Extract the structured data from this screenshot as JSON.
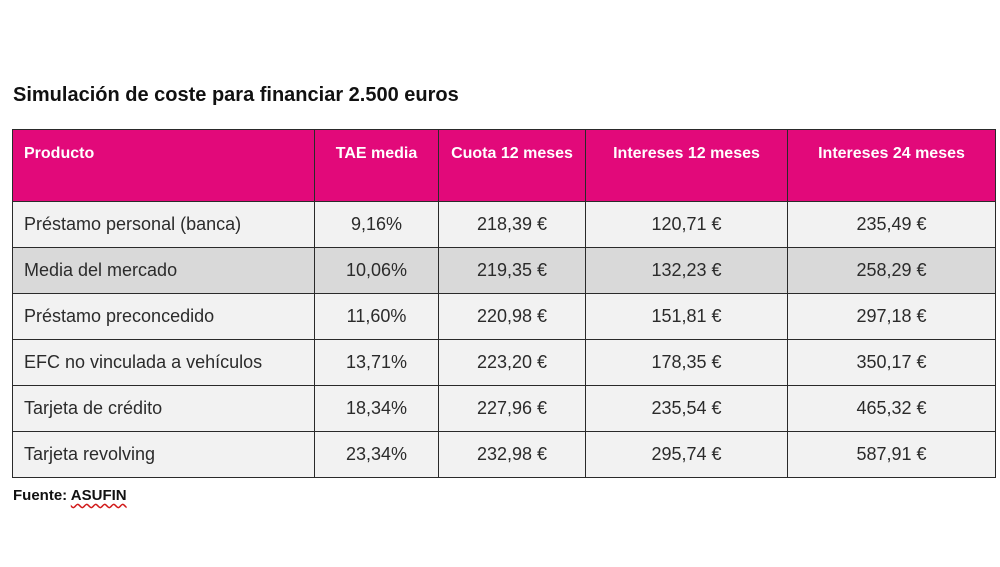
{
  "title": "Simulación de coste para financiar 2.500 euros",
  "table": {
    "headers": [
      "Producto",
      "TAE media",
      "Cuota 12 meses",
      "Intereses 12 meses",
      "Intereses 24 meses"
    ],
    "rows": [
      [
        "Préstamo personal (banca)",
        "9,16%",
        "218,39 €",
        "120,71 €",
        "235,49 €"
      ],
      [
        "Media del mercado",
        "10,06%",
        "219,35 €",
        "132,23 €",
        "258,29 €"
      ],
      [
        "Préstamo preconcedido",
        "11,60%",
        "220,98 €",
        "151,81 €",
        "297,18 €"
      ],
      [
        "EFC no vinculada a vehículos",
        "13,71%",
        "223,20 €",
        "178,35 €",
        "350,17 €"
      ],
      [
        "Tarjeta de crédito",
        "18,34%",
        "227,96 €",
        "235,54 €",
        "465,32 €"
      ],
      [
        "Tarjeta revolving",
        "23,34%",
        "232,98 €",
        "295,74 €",
        "587,91 €"
      ]
    ]
  },
  "source": {
    "label": "Fuente: ",
    "name": "ASUFIN"
  },
  "colors": {
    "header_bg": "#e2097a",
    "header_text": "#ffffff",
    "row_bg": "#f2f2f2",
    "highlight_row_bg": "#d9d9d9",
    "border": "#2a2a2a",
    "spellcheck_underline": "#d11a1a"
  }
}
